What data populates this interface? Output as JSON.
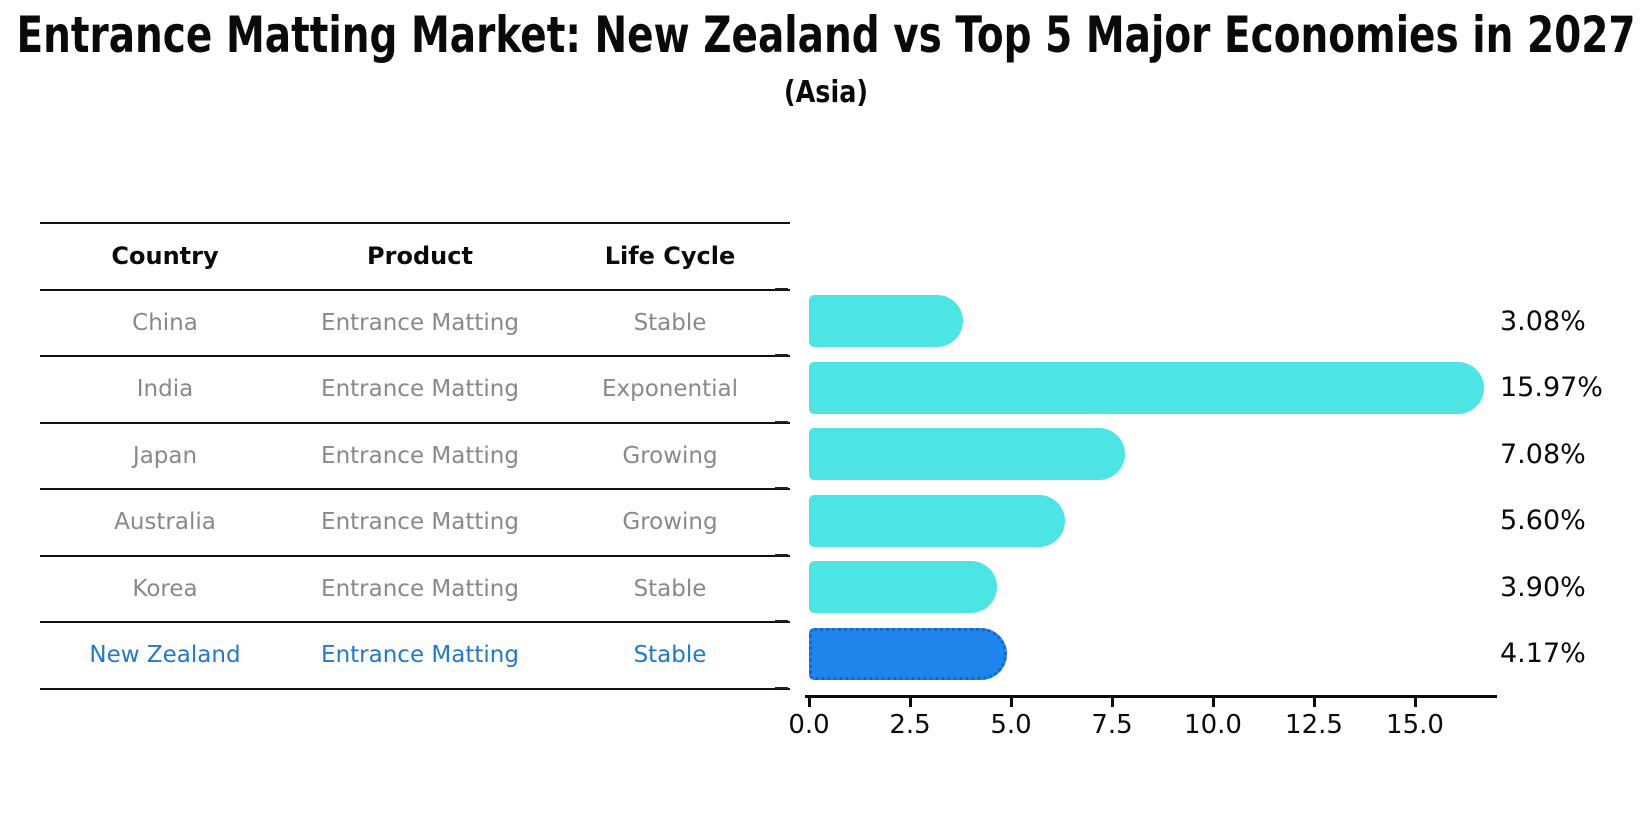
{
  "chart_data": {
    "type": "bar",
    "orientation": "horizontal",
    "title": "Entrance Matting Market: New Zealand vs Top 5 Major Economies in 2027",
    "subtitle": "(Asia)",
    "categories": [
      "China",
      "India",
      "Japan",
      "Australia",
      "Korea",
      "New Zealand"
    ],
    "values": [
      3.08,
      15.97,
      7.08,
      5.6,
      3.9,
      4.17
    ],
    "value_labels": [
      "3.08%",
      "15.97%",
      "7.08%",
      "5.60%",
      "3.90%",
      "4.17%"
    ],
    "highlight_index": 5,
    "xlabel": "",
    "ylabel": "",
    "xlim": [
      0.0,
      16.85
    ],
    "xticks": [
      0.0,
      2.5,
      5.0,
      7.5,
      10.0,
      12.5,
      15.0
    ],
    "xtick_labels": [
      "0.0",
      "2.5",
      "5.0",
      "7.5",
      "10.0",
      "12.5",
      "15.0"
    ],
    "grid": false,
    "legend": false
  },
  "table": {
    "headers": [
      "Country",
      "Product",
      "Life Cycle"
    ],
    "rows": [
      {
        "country": "China",
        "product": "Entrance Matting",
        "life_cycle": "Stable",
        "highlight": false
      },
      {
        "country": "India",
        "product": "Entrance Matting",
        "life_cycle": "Exponential",
        "highlight": false
      },
      {
        "country": "Japan",
        "product": "Entrance Matting",
        "life_cycle": "Growing",
        "highlight": false
      },
      {
        "country": "Australia",
        "product": "Entrance Matting",
        "life_cycle": "Growing",
        "highlight": false
      },
      {
        "country": "Korea",
        "product": "Entrance Matting",
        "life_cycle": "Stable",
        "highlight": false
      },
      {
        "country": "New Zealand",
        "product": "Entrance Matting",
        "life_cycle": "Stable",
        "highlight": true
      }
    ]
  },
  "colors": {
    "bar_cyan": "#4ce5e4",
    "bar_highlight_blue": "#1f85ec",
    "bar_highlight_border": "#1565cd",
    "table_text_gray": "#898989",
    "highlight_text_blue": "#2279c9",
    "line_black": "#111111"
  }
}
